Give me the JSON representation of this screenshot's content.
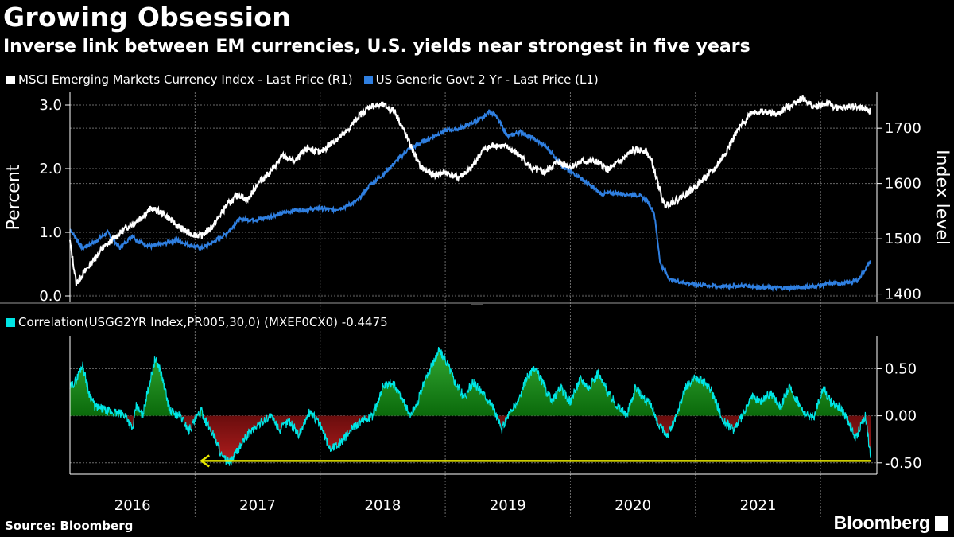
{
  "header": {
    "title": "Growing Obsession",
    "subtitle": "Inverse link between EM currencies, U.S. yields near strongest in five years"
  },
  "footer": {
    "source": "Source: Bloomberg",
    "brand": "Bloomberg"
  },
  "colors": {
    "msci": "#ffffff",
    "yield": "#2f7fe0",
    "corr_line": "#00e5e5",
    "corr_pos": "#118a11",
    "corr_neg": "#8b1212",
    "arrow": "#e8e800",
    "grid": "#6a6a6a"
  },
  "chart_data": [
    {
      "type": "line",
      "panel": "top",
      "legend_position": "top-left",
      "ylabel_left": "Percent",
      "ylabel_right": "Index level",
      "ylim_left": [
        -0.1,
        3.2
      ],
      "ylim_right": [
        1385,
        1765
      ],
      "yticks_left": [
        "0.0",
        "1.0",
        "2.0",
        "3.0"
      ],
      "yticks_right": [
        "1400",
        "1500",
        "1600",
        "1700"
      ],
      "series": [
        {
          "name": "MSCI Emerging Markets Currency Index - Last Price (R1)",
          "axis": "right",
          "x": [
            2015.5,
            2015.55,
            2015.65,
            2015.75,
            2015.85,
            2015.95,
            2016.05,
            2016.15,
            2016.25,
            2016.35,
            2016.45,
            2016.55,
            2016.65,
            2016.75,
            2016.85,
            2016.92,
            2017.0,
            2017.1,
            2017.2,
            2017.3,
            2017.4,
            2017.5,
            2017.6,
            2017.7,
            2017.8,
            2017.9,
            2018.0,
            2018.1,
            2018.2,
            2018.3,
            2018.4,
            2018.5,
            2018.6,
            2018.7,
            2018.8,
            2018.9,
            2019.0,
            2019.1,
            2019.2,
            2019.3,
            2019.4,
            2019.5,
            2019.6,
            2019.7,
            2019.8,
            2019.9,
            2020.0,
            2020.1,
            2020.15,
            2020.2,
            2020.25,
            2020.35,
            2020.45,
            2020.55,
            2020.65,
            2020.75,
            2020.85,
            2020.95,
            2021.05,
            2021.15,
            2021.25,
            2021.35,
            2021.45,
            2021.55,
            2021.65,
            2021.75,
            2021.85,
            2021.9
          ],
          "values": [
            1495,
            1420,
            1450,
            1480,
            1500,
            1520,
            1535,
            1555,
            1545,
            1525,
            1510,
            1505,
            1525,
            1560,
            1580,
            1570,
            1600,
            1620,
            1650,
            1640,
            1665,
            1655,
            1675,
            1690,
            1720,
            1740,
            1742,
            1730,
            1680,
            1630,
            1615,
            1620,
            1610,
            1625,
            1660,
            1670,
            1665,
            1650,
            1625,
            1620,
            1640,
            1630,
            1640,
            1640,
            1625,
            1640,
            1660,
            1660,
            1640,
            1600,
            1560,
            1570,
            1585,
            1605,
            1625,
            1660,
            1700,
            1730,
            1730,
            1725,
            1740,
            1755,
            1738,
            1745,
            1735,
            1740,
            1735,
            1730
          ]
        },
        {
          "name": "US Generic Govt 2 Yr - Last Price (L1)",
          "axis": "left",
          "x": [
            2015.5,
            2015.6,
            2015.7,
            2015.8,
            2015.9,
            2016.0,
            2016.05,
            2016.15,
            2016.25,
            2016.35,
            2016.45,
            2016.55,
            2016.65,
            2016.75,
            2016.85,
            2016.92,
            2017.0,
            2017.1,
            2017.2,
            2017.3,
            2017.4,
            2017.5,
            2017.6,
            2017.7,
            2017.8,
            2017.9,
            2018.0,
            2018.1,
            2018.2,
            2018.3,
            2018.4,
            2018.5,
            2018.6,
            2018.7,
            2018.8,
            2018.85,
            2018.9,
            2019.0,
            2019.1,
            2019.2,
            2019.3,
            2019.35,
            2019.45,
            2019.55,
            2019.65,
            2019.75,
            2019.85,
            2019.95,
            2020.05,
            2020.12,
            2020.17,
            2020.22,
            2020.3,
            2020.5,
            2020.7,
            2020.9,
            2021.1,
            2021.3,
            2021.45,
            2021.6,
            2021.7,
            2021.8,
            2021.85,
            2021.9
          ],
          "values": [
            1.05,
            0.75,
            0.85,
            1.0,
            0.75,
            0.95,
            0.85,
            0.78,
            0.82,
            0.88,
            0.8,
            0.75,
            0.85,
            0.98,
            1.2,
            1.2,
            1.2,
            1.25,
            1.3,
            1.35,
            1.35,
            1.38,
            1.35,
            1.4,
            1.5,
            1.75,
            1.9,
            2.1,
            2.3,
            2.4,
            2.5,
            2.6,
            2.62,
            2.7,
            2.8,
            2.9,
            2.85,
            2.5,
            2.58,
            2.48,
            2.35,
            2.25,
            2.0,
            1.9,
            1.75,
            1.6,
            1.62,
            1.6,
            1.58,
            1.48,
            1.3,
            0.5,
            0.25,
            0.18,
            0.15,
            0.16,
            0.13,
            0.13,
            0.15,
            0.2,
            0.2,
            0.25,
            0.4,
            0.55
          ]
        }
      ]
    },
    {
      "type": "area",
      "panel": "bottom",
      "legend_position": "top-left",
      "series_name": "Correlation(USGG2YR Index,PR005,30,0) (MXEF0CX0) -0.4475",
      "ylim": [
        -0.62,
        0.85
      ],
      "yticks": [
        "-0.50",
        "0.00",
        "0.50"
      ],
      "x": [
        2015.5,
        2015.55,
        2015.6,
        2015.65,
        2015.7,
        2015.8,
        2015.9,
        2015.95,
        2016.0,
        2016.03,
        2016.08,
        2016.12,
        2016.18,
        2016.22,
        2016.3,
        2016.38,
        2016.45,
        2016.55,
        2016.6,
        2016.65,
        2016.72,
        2016.78,
        2016.85,
        2016.92,
        2017.0,
        2017.1,
        2017.18,
        2017.25,
        2017.33,
        2017.42,
        2017.5,
        2017.58,
        2017.65,
        2017.72,
        2017.78,
        2017.85,
        2017.92,
        2018.0,
        2018.08,
        2018.15,
        2018.22,
        2018.28,
        2018.33,
        2018.38,
        2018.45,
        2018.52,
        2018.58,
        2018.65,
        2018.72,
        2018.8,
        2018.88,
        2018.95,
        2019.0,
        2019.08,
        2019.15,
        2019.22,
        2019.28,
        2019.35,
        2019.42,
        2019.5,
        2019.58,
        2019.65,
        2019.72,
        2019.8,
        2019.88,
        2019.95,
        2020.02,
        2020.08,
        2020.15,
        2020.2,
        2020.28,
        2020.35,
        2020.42,
        2020.5,
        2020.58,
        2020.65,
        2020.72,
        2020.8,
        2020.88,
        2020.95,
        2021.02,
        2021.1,
        2021.18,
        2021.25,
        2021.32,
        2021.38,
        2021.45,
        2021.52,
        2021.58,
        2021.65,
        2021.72,
        2021.78,
        2021.82,
        2021.86,
        2021.9
      ],
      "values": [
        0.3,
        0.38,
        0.55,
        0.25,
        0.1,
        0.05,
        0.02,
        0.0,
        -0.15,
        0.1,
        0.0,
        0.25,
        0.6,
        0.5,
        0.05,
        0.0,
        -0.15,
        0.05,
        -0.1,
        -0.2,
        -0.45,
        -0.5,
        -0.35,
        -0.2,
        -0.1,
        0.0,
        -0.15,
        -0.05,
        -0.2,
        0.05,
        -0.1,
        -0.35,
        -0.3,
        -0.2,
        -0.1,
        -0.05,
        0.0,
        0.3,
        0.35,
        0.2,
        0.0,
        0.15,
        0.35,
        0.5,
        0.7,
        0.55,
        0.35,
        0.2,
        0.35,
        0.25,
        0.1,
        -0.15,
        0.0,
        0.15,
        0.4,
        0.5,
        0.35,
        0.15,
        0.3,
        0.15,
        0.4,
        0.3,
        0.45,
        0.25,
        0.1,
        0.0,
        0.3,
        0.2,
        0.1,
        -0.1,
        -0.2,
        0.0,
        0.3,
        0.4,
        0.35,
        0.2,
        -0.05,
        -0.15,
        0.0,
        0.2,
        0.15,
        0.25,
        0.1,
        0.3,
        0.15,
        0.0,
        0.0,
        0.3,
        0.15,
        0.1,
        -0.05,
        -0.25,
        -0.1,
        0.0,
        -0.45
      ]
    }
  ],
  "x_axis": {
    "labels": [
      "2016",
      "2017",
      "2018",
      "2019",
      "2020",
      "2021"
    ],
    "label_centers": [
      2016.0,
      2017.0,
      2018.0,
      2019.0,
      2020.0,
      2021.0
    ],
    "year_separators": [
      2016.5,
      2017.5,
      2018.5,
      2019.5,
      2020.5,
      2021.5
    ],
    "range": [
      2015.5,
      2021.95
    ]
  },
  "annotation": {
    "type": "arrow",
    "from_x": 2021.9,
    "to_x": 2016.55,
    "y": -0.48,
    "color": "#e8e800"
  }
}
